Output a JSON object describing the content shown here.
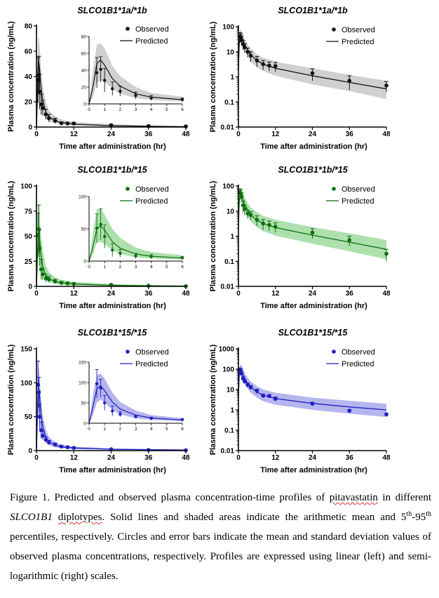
{
  "chart_data": [
    {
      "type": "line",
      "scale": "linear",
      "color": "#111111",
      "band_color": "#c8c8c8",
      "title": "SLCO1B1*1a/*1b",
      "xlabel": "Time after administration (hr)",
      "ylabel": "Plasma concentration (ng/mL)",
      "xlim": [
        0,
        48
      ],
      "ylim": [
        0,
        80
      ],
      "xticks": [
        "0",
        "12",
        "24",
        "36",
        "48"
      ],
      "yticks": [
        "0",
        "20",
        "40",
        "60",
        "80"
      ],
      "legend": {
        "position": "top-right",
        "observed": "Observed",
        "predicted": "Predicted"
      },
      "series": [
        {
          "name": "Observed",
          "x": [
            0.5,
            0.75,
            1,
            1.5,
            2,
            3,
            4,
            6,
            8,
            10,
            12,
            24,
            36,
            48
          ],
          "y": [
            37,
            41,
            28,
            18,
            15,
            10,
            7,
            5,
            3,
            2.8,
            2.8,
            1.5,
            0.8,
            0.5
          ],
          "sd": [
            18,
            15,
            14,
            8,
            6,
            4,
            3,
            2,
            1,
            0.8,
            0.8,
            0.6,
            0.4,
            0.2
          ]
        },
        {
          "name": "Predicted",
          "x": [
            0,
            0.25,
            0.5,
            0.75,
            1,
            1.5,
            2,
            3,
            4,
            6,
            8,
            12,
            24,
            36,
            48
          ],
          "y": [
            0,
            20,
            48,
            52,
            46,
            30,
            21,
            12,
            8,
            5,
            3.5,
            2.2,
            1.1,
            0.6,
            0.3
          ],
          "lo": [
            0,
            8,
            25,
            28,
            26,
            18,
            12,
            7,
            4.5,
            2.8,
            2,
            1.2,
            0.6,
            0.28,
            0.13
          ],
          "hi": [
            0,
            40,
            70,
            72,
            66,
            45,
            33,
            20,
            13,
            8.5,
            6,
            4,
            2.2,
            1.2,
            0.7
          ]
        }
      ],
      "inset": {
        "xlim": [
          0,
          6
        ],
        "ylim": [
          0,
          80
        ],
        "xticks": [
          "0",
          "1",
          "2",
          "3",
          "4",
          "5",
          "6"
        ],
        "yticks": [
          "0",
          "20",
          "40",
          "60",
          "80"
        ]
      }
    },
    {
      "type": "line",
      "scale": "log",
      "color": "#111111",
      "band_color": "#c8c8c8",
      "title": "SLCO1B1*1a/*1b",
      "xlabel": "Time after administration (hr)",
      "ylabel": "Plasma concentration (ng/mL)",
      "xlim": [
        0,
        48
      ],
      "ylim": [
        0.01,
        100
      ],
      "xticks": [
        "0",
        "12",
        "24",
        "36",
        "48"
      ],
      "yticks": [
        "0.01",
        "0.1",
        "1",
        "10",
        "100"
      ],
      "legend": {
        "position": "top-right",
        "observed": "Observed",
        "predicted": "Predicted"
      },
      "series": [
        {
          "name": "Observed",
          "x": [
            0.5,
            0.75,
            1,
            1.5,
            2,
            3,
            4,
            6,
            8,
            10,
            12,
            24,
            36,
            48
          ],
          "y": [
            40,
            38,
            30,
            20,
            15,
            10,
            7,
            4.5,
            3.2,
            2.8,
            2.7,
            1.4,
            0.7,
            0.45
          ],
          "sd": [
            18,
            14,
            12,
            8,
            6,
            4,
            3,
            2,
            1.3,
            1.1,
            1.1,
            0.7,
            0.4,
            0.2
          ]
        },
        {
          "name": "Predicted",
          "x": [
            0,
            0.25,
            0.5,
            0.75,
            1,
            1.5,
            2,
            3,
            4,
            6,
            8,
            12,
            24,
            36,
            48
          ],
          "y": [
            2,
            20,
            45,
            48,
            42,
            28,
            20,
            12,
            7.5,
            4.5,
            3.2,
            2.2,
            1.1,
            0.6,
            0.33
          ],
          "lo": [
            0.5,
            9,
            24,
            27,
            24,
            16,
            11,
            6.5,
            4,
            2.4,
            1.7,
            1.1,
            0.5,
            0.27,
            0.13
          ],
          "hi": [
            6,
            40,
            75,
            78,
            70,
            48,
            34,
            20,
            13,
            8,
            5.8,
            4,
            2.2,
            1.2,
            0.7
          ]
        }
      ]
    },
    {
      "type": "line",
      "scale": "linear",
      "color": "#0e6e0e",
      "band_color": "#9fda9f",
      "title": "SLCO1B1*1b/*15",
      "xlabel": "Time after administration (hr)",
      "ylabel": "Plasma concentration (ng/mL)",
      "xlim": [
        0,
        48
      ],
      "ylim": [
        0,
        100
      ],
      "xticks": [
        "0",
        "12",
        "24",
        "36",
        "48"
      ],
      "yticks": [
        "0",
        "25",
        "50",
        "75",
        "100"
      ],
      "legend": {
        "position": "top-right",
        "observed": "Observed",
        "predicted": "Predicted"
      },
      "series": [
        {
          "name": "Observed",
          "x": [
            0.5,
            0.75,
            1,
            1.5,
            2,
            3,
            4,
            6,
            8,
            10,
            12,
            24,
            36,
            48
          ],
          "y": [
            51,
            57,
            38,
            17,
            12,
            8,
            7,
            5,
            3.5,
            3,
            2.5,
            1.5,
            0.7,
            0.25
          ],
          "sd": [
            22,
            24,
            18,
            10,
            6,
            4,
            3,
            2,
            1.5,
            1.2,
            1,
            0.6,
            0.3,
            0.1
          ]
        },
        {
          "name": "Predicted",
          "x": [
            0,
            0.25,
            0.5,
            0.75,
            1,
            1.5,
            2,
            3,
            4,
            6,
            8,
            12,
            24,
            36,
            48
          ],
          "y": [
            0,
            22,
            50,
            55,
            48,
            30,
            20,
            11,
            7.5,
            4.8,
            3.5,
            2.3,
            1.1,
            0.6,
            0.3
          ],
          "lo": [
            0,
            10,
            28,
            30,
            26,
            17,
            11,
            6,
            4,
            2.5,
            1.7,
            1.1,
            0.5,
            0.25,
            0.12
          ],
          "hi": [
            0,
            45,
            80,
            82,
            72,
            50,
            36,
            21,
            14,
            9,
            6.5,
            4.5,
            2.3,
            1.3,
            0.7
          ]
        }
      ],
      "inset": {
        "xlim": [
          0,
          6
        ],
        "ylim": [
          0,
          100
        ],
        "xticks": [
          "0",
          "1",
          "2",
          "3",
          "4",
          "5",
          "6"
        ],
        "yticks": [
          "0",
          "50",
          "100"
        ]
      }
    },
    {
      "type": "line",
      "scale": "log",
      "color": "#0e6e0e",
      "band_color": "#9fda9f",
      "title": "SLCO1B1*1b/*15",
      "xlabel": "Time after administration (hr)",
      "ylabel": "Plasma concentration (ng/mL)",
      "xlim": [
        0,
        48
      ],
      "ylim": [
        0.01,
        100
      ],
      "xticks": [
        "0",
        "12",
        "24",
        "36",
        "48"
      ],
      "yticks": [
        "0.01",
        "0.1",
        "1",
        "10",
        "100"
      ],
      "legend": {
        "position": "top-right",
        "observed": "Observed",
        "predicted": "Predicted"
      },
      "series": [
        {
          "name": "Observed",
          "x": [
            0.5,
            0.75,
            1,
            1.5,
            2,
            3,
            4,
            6,
            8,
            10,
            12,
            24,
            36,
            48
          ],
          "y": [
            55,
            50,
            38,
            17,
            12,
            8,
            7,
            4.5,
            3.2,
            2.8,
            2.4,
            1.4,
            0.7,
            0.2
          ],
          "sd": [
            22,
            20,
            16,
            8,
            5,
            3,
            2.5,
            2,
            1.4,
            1.2,
            1,
            0.6,
            0.3,
            0.1
          ]
        },
        {
          "name": "Predicted",
          "x": [
            0,
            0.25,
            0.5,
            0.75,
            1,
            1.5,
            2,
            3,
            4,
            6,
            8,
            12,
            24,
            36,
            48
          ],
          "y": [
            2,
            22,
            48,
            52,
            44,
            28,
            19,
            11,
            7,
            4.4,
            3.2,
            2.2,
            1.1,
            0.58,
            0.3
          ],
          "lo": [
            0.5,
            10,
            26,
            29,
            25,
            16,
            10.5,
            6,
            3.8,
            2.3,
            1.6,
            1.05,
            0.5,
            0.25,
            0.12
          ],
          "hi": [
            6,
            45,
            80,
            82,
            72,
            50,
            36,
            21,
            14,
            9,
            6.5,
            4.5,
            2.3,
            1.3,
            0.7
          ]
        }
      ]
    },
    {
      "type": "line",
      "scale": "linear",
      "color": "#1f1fbf",
      "band_color": "#a9a9ec",
      "title": "SLCO1B1*15/*15",
      "xlabel": "Time after administration (hr)",
      "ylabel": "Plasma concentration (ng/mL)",
      "xlim": [
        0,
        48
      ],
      "ylim": [
        0,
        150
      ],
      "xticks": [
        "0",
        "12",
        "24",
        "36",
        "48"
      ],
      "yticks": [
        "0",
        "50",
        "100",
        "150"
      ],
      "legend": {
        "position": "top-right",
        "observed": "Observed",
        "predicted": "Predicted"
      },
      "series": [
        {
          "name": "Observed",
          "x": [
            0.5,
            0.75,
            1,
            1.5,
            2,
            3,
            4,
            6,
            8,
            10,
            12,
            24,
            36,
            48
          ],
          "y": [
            97,
            86,
            50,
            30,
            22,
            16,
            12,
            9,
            6,
            5,
            4,
            2,
            1,
            0.6
          ],
          "sd": [
            35,
            22,
            18,
            12,
            6,
            4,
            3,
            2,
            1.5,
            1.2,
            1,
            0.5,
            0.3,
            0.1
          ]
        },
        {
          "name": "Predicted",
          "x": [
            0,
            0.25,
            0.5,
            0.75,
            1,
            1.5,
            2,
            3,
            4,
            6,
            8,
            12,
            24,
            36,
            48
          ],
          "y": [
            0,
            40,
            85,
            92,
            80,
            52,
            35,
            20,
            13,
            8,
            5.5,
            3.8,
            2,
            1.3,
            0.9
          ],
          "lo": [
            0,
            20,
            50,
            58,
            50,
            33,
            22,
            12,
            8,
            4.8,
            3.3,
            2.2,
            1.1,
            0.7,
            0.45
          ],
          "hi": [
            0,
            70,
            118,
            122,
            110,
            75,
            52,
            31,
            20,
            12.5,
            8.5,
            6,
            3.3,
            2.2,
            1.6
          ]
        }
      ],
      "inset": {
        "xlim": [
          0,
          6
        ],
        "ylim": [
          0,
          150
        ],
        "xticks": [
          "0",
          "1",
          "2",
          "3",
          "4",
          "5",
          "6"
        ],
        "yticks": [
          "0",
          "50",
          "100",
          "150"
        ]
      }
    },
    {
      "type": "line",
      "scale": "log",
      "color": "#1f1fbf",
      "band_color": "#a9a9ec",
      "title": "SLCO1B1*15/*15",
      "xlabel": "Time after administration (hr)",
      "ylabel": "Plasma concentration (ng/mL)",
      "xlim": [
        0,
        48
      ],
      "ylim": [
        0.01,
        1000
      ],
      "xticks": [
        "0",
        "12",
        "24",
        "36",
        "48"
      ],
      "yticks": [
        "0.01",
        "0.1",
        "1",
        "10",
        "100",
        "1000"
      ],
      "legend": {
        "position": "top-right",
        "observed": "Observed",
        "predicted": "Predicted"
      },
      "series": [
        {
          "name": "Observed",
          "x": [
            0.5,
            0.75,
            1,
            1.5,
            2,
            3,
            4,
            6,
            8,
            10,
            12,
            24,
            36,
            48
          ],
          "y": [
            95,
            85,
            60,
            35,
            25,
            17,
            13,
            8.5,
            5,
            4.8,
            3.5,
            2,
            0.9,
            0.6
          ],
          "sd": [
            20,
            15,
            12,
            8,
            5,
            4,
            3,
            2,
            1,
            0.9,
            0.8,
            0.4,
            0.15,
            0.08
          ]
        },
        {
          "name": "Predicted",
          "x": [
            0,
            0.25,
            0.5,
            0.75,
            1,
            1.5,
            2,
            3,
            4,
            6,
            8,
            12,
            24,
            36,
            48
          ],
          "y": [
            5,
            45,
            90,
            95,
            85,
            55,
            36,
            20,
            13,
            7.5,
            5.2,
            3.6,
            2.1,
            1.4,
            1
          ],
          "lo": [
            1,
            20,
            50,
            55,
            48,
            30,
            19,
            10.5,
            6.8,
            4,
            2.7,
            1.8,
            1,
            0.65,
            0.45
          ],
          "hi": [
            15,
            90,
            160,
            165,
            150,
            100,
            66,
            38,
            25,
            14.5,
            10,
            7,
            4,
            2.8,
            2
          ]
        }
      ]
    }
  ],
  "caption": {
    "part1": "Figure 1. Predicted and observed plasma concentration-time profiles of ",
    "drug": "pitavastatin",
    "part2": " in different ",
    "gene": "SLCO1B1",
    "space": " ",
    "diplotypes": "diplotypes",
    "part3": ". Solid lines and shaded areas indicate the arithmetic mean and 5",
    "sup1": "th",
    "dash": "-95",
    "sup2": "th",
    "part4": " percentiles, respectively. Circles and error bars indicate the mean and standard deviation values of observed plasma concentrations, respectively. Profiles are expressed using linear (left) and semi-logarithmic (right) scales."
  }
}
